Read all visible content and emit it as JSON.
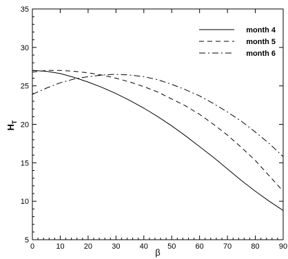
{
  "chart_data": {
    "type": "line",
    "xlabel": "β",
    "ylabel_main": "H",
    "ylabel_sub": "T",
    "xlim": [
      0,
      90
    ],
    "ylim": [
      5,
      35
    ],
    "xticks": [
      0,
      10,
      20,
      30,
      40,
      50,
      60,
      70,
      80,
      90
    ],
    "yticks": [
      5,
      10,
      15,
      20,
      25,
      30,
      35
    ],
    "grid": false,
    "legend_position": "top-right",
    "series": [
      {
        "name": "month 4",
        "dash": "solid",
        "x": [
          0,
          5,
          10,
          15,
          20,
          25,
          30,
          35,
          40,
          45,
          50,
          55,
          60,
          65,
          70,
          75,
          80,
          85,
          90
        ],
        "y": [
          27.0,
          26.9,
          26.6,
          26.1,
          25.5,
          24.8,
          24.0,
          23.1,
          22.1,
          21.0,
          19.8,
          18.5,
          17.1,
          15.7,
          14.2,
          12.7,
          11.3,
          10.0,
          8.8
        ]
      },
      {
        "name": "month 5",
        "dash": "dashed",
        "x": [
          0,
          5,
          10,
          15,
          20,
          25,
          30,
          35,
          40,
          45,
          50,
          55,
          60,
          65,
          70,
          75,
          80,
          85,
          90
        ],
        "y": [
          26.8,
          27.0,
          27.0,
          26.9,
          26.7,
          26.4,
          26.0,
          25.5,
          24.9,
          24.2,
          23.3,
          22.4,
          21.3,
          20.0,
          18.6,
          17.0,
          15.3,
          13.3,
          11.3
        ]
      },
      {
        "name": "month 6",
        "dash": "dashdot",
        "x": [
          0,
          5,
          10,
          15,
          20,
          25,
          30,
          35,
          40,
          45,
          50,
          55,
          60,
          65,
          70,
          75,
          80,
          85,
          90
        ],
        "y": [
          23.9,
          24.7,
          25.4,
          25.9,
          26.2,
          26.4,
          26.5,
          26.4,
          26.2,
          25.8,
          25.2,
          24.5,
          23.7,
          22.7,
          21.6,
          20.4,
          19.0,
          17.5,
          15.8
        ]
      }
    ]
  }
}
